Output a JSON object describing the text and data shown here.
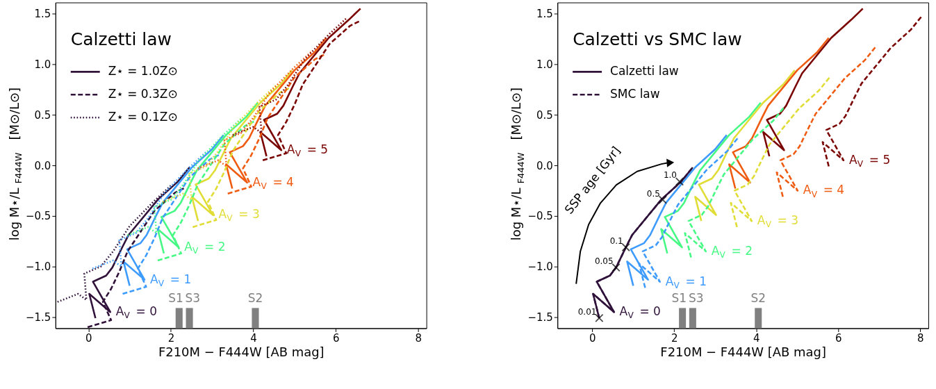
{
  "chart_data": [
    {
      "type": "line",
      "title": "Calzetti law",
      "xlabel": "F210M − F444W  [AB mag]",
      "ylabel": "log  M⋆/L$_{F444W}$  [M⊙/L⊙]",
      "xlim": [
        -0.8,
        8.2
      ],
      "ylim": [
        -1.61,
        1.61
      ],
      "xticks": [
        0,
        2,
        4,
        6,
        8
      ],
      "yticks": [
        {
          "value": -1.5,
          "label": "−1.5"
        },
        {
          "value": -1,
          "label": "−1.0"
        },
        {
          "value": -0.5,
          "label": "−0.5"
        },
        {
          "value": 0,
          "label": "0.0"
        },
        {
          "value": 0.5,
          "label": "0.5"
        },
        {
          "value": 1,
          "label": "1.0"
        },
        {
          "value": 1.5,
          "label": "1.5"
        }
      ],
      "grid": false,
      "legend": "top left",
      "series": [
        {
          "name": "Z⋆ = 1.0Z⊙",
          "color": "#30123b",
          "line_style": "solid",
          "x": [
            0.17,
            0.02,
            0.53,
            0.11,
            0.43,
            0.58,
            0.82,
            0.97,
            1.68,
            2.17,
            2.45
          ],
          "values": [
            -1.51,
            -1.27,
            -1.45,
            -1.15,
            -1.09,
            -1.01,
            -0.81,
            -0.69,
            -0.34,
            -0.16,
            -0.02
          ]
        },
        {
          "color": "#3e9bfe",
          "line_style": "solid",
          "x": [
            1.0,
            0.85,
            1.36,
            0.94,
            1.26,
            1.41,
            1.65,
            1.8,
            2.51,
            3.0,
            3.28
          ],
          "values": [
            -1.19,
            -0.95,
            -1.13,
            -0.83,
            -0.77,
            -0.69,
            -0.49,
            -0.37,
            -0.02,
            0.16,
            0.3
          ]
        },
        {
          "color": "#46f884",
          "line_style": "solid",
          "x": [
            1.83,
            1.68,
            2.19,
            1.77,
            2.09,
            2.24,
            2.48,
            2.63,
            3.34,
            3.83,
            4.11
          ],
          "values": [
            -0.87,
            -0.63,
            -0.81,
            -0.51,
            -0.45,
            -0.37,
            -0.17,
            -0.05,
            0.3,
            0.48,
            0.62
          ]
        },
        {
          "color": "#e1dd37",
          "line_style": "solid",
          "x": [
            2.66,
            2.51,
            3.02,
            2.6,
            2.92,
            3.07,
            3.31,
            3.46,
            4.17,
            4.66,
            4.94
          ],
          "values": [
            -0.55,
            -0.31,
            -0.49,
            -0.19,
            -0.13,
            -0.05,
            0.15,
            0.27,
            0.62,
            0.8,
            0.94
          ]
        },
        {
          "color": "#f05b12",
          "line_style": "solid",
          "x": [
            3.49,
            3.34,
            3.85,
            3.43,
            3.75,
            3.9,
            4.14,
            4.29,
            5.0,
            5.49,
            5.77
          ],
          "values": [
            -0.23,
            0.01,
            -0.17,
            0.13,
            0.19,
            0.27,
            0.47,
            0.59,
            0.94,
            1.12,
            1.26
          ]
        },
        {
          "color": "#7a0403",
          "line_style": "solid",
          "x": [
            4.32,
            4.17,
            4.68,
            4.26,
            4.58,
            4.73,
            4.97,
            5.12,
            5.83,
            6.32,
            6.6
          ],
          "values": [
            0.09,
            0.33,
            0.15,
            0.45,
            0.51,
            0.59,
            0.79,
            0.91,
            1.26,
            1.44,
            1.55
          ]
        },
        {
          "name": "Z⋆ = 0.3Z⊙",
          "color": "#30123b",
          "line_style": "dashed",
          "x": [
            -0.02,
            0.55,
            0.35,
            0.55,
            0.75,
            0.95,
            1.6,
            2.1,
            2.35
          ],
          "values": [
            -1.6,
            -1.53,
            -1.35,
            -1.22,
            -1.05,
            -0.85,
            -0.45,
            -0.27,
            -0.22
          ]
        },
        {
          "color": "#3e9bfe",
          "line_style": "dashed",
          "x": [
            0.83,
            1.4,
            1.2,
            1.4,
            1.6,
            1.8,
            2.45,
            2.95,
            3.2
          ],
          "values": [
            -1.27,
            -1.2,
            -1.02,
            -0.89,
            -0.72,
            -0.52,
            -0.12,
            0.06,
            0.11
          ]
        },
        {
          "color": "#46f884",
          "line_style": "dashed",
          "x": [
            1.68,
            2.25,
            2.05,
            2.25,
            2.45,
            2.65,
            3.3,
            3.8,
            4.05
          ],
          "values": [
            -0.94,
            -0.87,
            -0.69,
            -0.56,
            -0.39,
            -0.19,
            0.21,
            0.39,
            0.44
          ]
        },
        {
          "color": "#e1dd37",
          "line_style": "dashed",
          "x": [
            2.53,
            3.1,
            2.9,
            3.1,
            3.3,
            3.5,
            4.15,
            4.65,
            4.9
          ],
          "values": [
            -0.61,
            -0.54,
            -0.36,
            -0.23,
            -0.06,
            0.14,
            0.54,
            0.72,
            0.77
          ]
        },
        {
          "color": "#f05b12",
          "line_style": "dashed",
          "x": [
            3.38,
            3.95,
            3.75,
            3.95,
            4.15,
            4.35,
            5.0,
            5.5,
            5.75
          ],
          "values": [
            -0.28,
            -0.21,
            -0.03,
            0.1,
            0.27,
            0.47,
            0.87,
            1.05,
            1.1
          ]
        },
        {
          "color": "#7a0403",
          "line_style": "dashed",
          "x": [
            4.23,
            4.8,
            4.6,
            4.8,
            5.0,
            5.2,
            5.85,
            6.35,
            6.6
          ],
          "values": [
            0.05,
            0.12,
            0.3,
            0.43,
            0.6,
            0.8,
            1.2,
            1.38,
            1.43
          ]
        },
        {
          "name": "Z⋆ = 0.1Z⊙",
          "color": "#30123b",
          "line_style": "dotted",
          "x": [
            -0.75,
            -0.25,
            -0.05,
            -0.1,
            0.3,
            0.6,
            1.0,
            1.6,
            2.0
          ],
          "values": [
            -1.35,
            -1.27,
            -1.33,
            -1.07,
            -1.0,
            -0.85,
            -0.6,
            -0.35,
            -0.2
          ]
        },
        {
          "color": "#3e9bfe",
          "line_style": "dotted",
          "x": [
            0.1,
            0.6,
            0.8,
            0.75,
            1.15,
            1.45,
            1.85,
            2.45,
            2.85
          ],
          "values": [
            -1.02,
            -0.94,
            -1.0,
            -0.74,
            -0.67,
            -0.52,
            -0.27,
            -0.02,
            0.13
          ]
        },
        {
          "color": "#46f884",
          "line_style": "dotted",
          "x": [
            0.95,
            1.45,
            1.65,
            1.6,
            2.0,
            2.3,
            2.7,
            3.3,
            3.7
          ],
          "values": [
            -0.69,
            -0.61,
            -0.67,
            -0.41,
            -0.34,
            -0.19,
            0.06,
            0.31,
            0.46
          ]
        },
        {
          "color": "#e1dd37",
          "line_style": "dotted",
          "x": [
            1.8,
            2.3,
            2.5,
            2.45,
            2.85,
            3.15,
            3.55,
            4.15,
            4.55
          ],
          "values": [
            -0.36,
            -0.28,
            -0.34,
            -0.08,
            -0.01,
            0.14,
            0.39,
            0.64,
            0.79
          ]
        },
        {
          "color": "#f05b12",
          "line_style": "dotted",
          "x": [
            2.65,
            3.15,
            3.35,
            3.3,
            3.7,
            4.0,
            4.4,
            5.0,
            5.4
          ],
          "values": [
            -0.03,
            0.05,
            -0.01,
            0.25,
            0.32,
            0.47,
            0.72,
            0.97,
            1.12
          ]
        },
        {
          "color": "#7a0403",
          "line_style": "dotted",
          "x": [
            3.5,
            4.0,
            4.2,
            4.15,
            4.55,
            4.85,
            5.25,
            5.85,
            6.25
          ],
          "values": [
            0.3,
            0.38,
            0.32,
            0.58,
            0.65,
            0.8,
            1.05,
            1.3,
            1.45
          ]
        },
        {
          "type": "bar",
          "color": "#808080",
          "x": [
            2.2,
            2.45,
            4.05
          ],
          "base": [
            -1.61,
            -1.61,
            -1.61
          ],
          "values": [
            0.2,
            0.2,
            0.2
          ],
          "value_labels": [
            "S1",
            "S3",
            "S2"
          ]
        }
      ],
      "annotations": [
        {
          "text": "A$_{V}$ = 0",
          "x": 0.53,
          "y": -1.45
        },
        {
          "text": "A$_{V}$ = 1",
          "x": 1.36,
          "y": -1.13
        },
        {
          "text": "A$_{V}$ = 2",
          "x": 2.19,
          "y": -0.81
        },
        {
          "text": "A$_{V}$ = 3",
          "x": 3.02,
          "y": -0.49
        },
        {
          "text": "A$_{V}$ = 4",
          "x": 3.85,
          "y": -0.17
        },
        {
          "text": "A$_{V}$ = 5",
          "x": 4.68,
          "y": 0.15
        }
      ]
    },
    {
      "type": "line",
      "title": "Calzetti vs SMC law",
      "xlabel": "F210M − F444W  [AB mag]",
      "ylabel": "log  M⋆/L$_{F444W}$  [M⊙/L⊙]",
      "xlim": [
        -0.85,
        8.2
      ],
      "ylim": [
        -1.61,
        1.61
      ],
      "xticks": [
        0,
        2,
        4,
        6,
        8
      ],
      "yticks": [
        {
          "value": -1.5,
          "label": "−1.5"
        },
        {
          "value": -1,
          "label": "−1.0"
        },
        {
          "value": -0.5,
          "label": "−0.5"
        },
        {
          "value": 0,
          "label": "0.0"
        },
        {
          "value": 0.5,
          "label": "0.5"
        },
        {
          "value": 1,
          "label": "1.0"
        },
        {
          "value": 1.5,
          "label": "1.5"
        }
      ],
      "grid": false,
      "legend": "top left",
      "series": [
        {
          "name": "Calzetti law",
          "color": "#30123b",
          "line_style": "solid",
          "x": [
            0.17,
            0.02,
            0.53,
            0.11,
            0.43,
            0.58,
            0.82,
            0.97,
            1.68,
            2.17,
            2.45
          ],
          "values": [
            -1.51,
            -1.27,
            -1.45,
            -1.15,
            -1.09,
            -1.01,
            -0.81,
            -0.69,
            -0.34,
            -0.16,
            -0.02
          ]
        },
        {
          "color": "#3e9bfe",
          "line_style": "solid",
          "x": [
            1.0,
            0.85,
            1.36,
            0.94,
            1.26,
            1.41,
            1.65,
            1.8,
            2.51,
            3.0,
            3.28
          ],
          "values": [
            -1.19,
            -0.95,
            -1.13,
            -0.83,
            -0.77,
            -0.69,
            -0.49,
            -0.37,
            -0.02,
            0.16,
            0.3
          ]
        },
        {
          "color": "#46f884",
          "line_style": "solid",
          "x": [
            1.83,
            1.68,
            2.19,
            1.77,
            2.09,
            2.24,
            2.48,
            2.63,
            3.34,
            3.83,
            4.11
          ],
          "values": [
            -0.87,
            -0.63,
            -0.81,
            -0.51,
            -0.45,
            -0.37,
            -0.17,
            -0.05,
            0.3,
            0.48,
            0.62
          ]
        },
        {
          "color": "#e1dd37",
          "line_style": "solid",
          "x": [
            2.66,
            2.51,
            3.02,
            2.6,
            2.92,
            3.07,
            3.31,
            3.46,
            4.17,
            4.66,
            4.94
          ],
          "values": [
            -0.55,
            -0.31,
            -0.49,
            -0.19,
            -0.13,
            -0.05,
            0.15,
            0.27,
            0.62,
            0.8,
            0.94
          ]
        },
        {
          "color": "#f05b12",
          "line_style": "solid",
          "x": [
            3.49,
            3.34,
            3.85,
            3.43,
            3.75,
            3.9,
            4.14,
            4.29,
            5.0,
            5.49,
            5.77
          ],
          "values": [
            -0.23,
            0.01,
            -0.17,
            0.13,
            0.19,
            0.27,
            0.47,
            0.59,
            0.94,
            1.12,
            1.26
          ]
        },
        {
          "color": "#7a0403",
          "line_style": "solid",
          "x": [
            4.32,
            4.17,
            4.68,
            4.26,
            4.58,
            4.73,
            4.97,
            5.12,
            5.83,
            6.32,
            6.6
          ],
          "values": [
            0.09,
            0.33,
            0.15,
            0.45,
            0.51,
            0.59,
            0.79,
            0.91,
            1.26,
            1.44,
            1.55
          ]
        },
        {
          "name": "SMC law",
          "color": "#30123b",
          "line_style": "dashed",
          "x": [
            0.17,
            0.02,
            0.53,
            0.11,
            0.43,
            0.58,
            0.82,
            0.97,
            1.68,
            2.17,
            2.45
          ],
          "values": [
            -1.51,
            -1.27,
            -1.45,
            -1.15,
            -1.09,
            -1.01,
            -0.81,
            -0.69,
            -0.34,
            -0.16,
            -0.02
          ]
        },
        {
          "color": "#3e9bfe",
          "line_style": "dashed",
          "x": [
            1.29,
            1.14,
            1.65,
            1.23,
            1.55,
            1.7,
            1.94,
            2.09,
            2.8,
            3.29,
            3.57
          ],
          "values": [
            -1.21,
            -0.97,
            -1.15,
            -0.85,
            -0.79,
            -0.71,
            -0.51,
            -0.39,
            -0.04,
            0.14,
            0.28
          ]
        },
        {
          "color": "#46f884",
          "line_style": "dashed",
          "x": [
            2.41,
            2.26,
            2.77,
            2.35,
            2.67,
            2.82,
            3.06,
            3.21,
            3.92,
            4.41,
            4.69
          ],
          "values": [
            -0.91,
            -0.67,
            -0.85,
            -0.55,
            -0.49,
            -0.41,
            -0.21,
            -0.09,
            0.26,
            0.44,
            0.58
          ]
        },
        {
          "color": "#e1dd37",
          "line_style": "dashed",
          "x": [
            3.53,
            3.38,
            3.89,
            3.47,
            3.79,
            3.94,
            4.18,
            4.33,
            5.04,
            5.53,
            5.81
          ],
          "values": [
            -0.61,
            -0.37,
            -0.55,
            -0.25,
            -0.19,
            -0.11,
            0.09,
            0.21,
            0.56,
            0.74,
            0.88
          ]
        },
        {
          "color": "#f05b12",
          "line_style": "dashed",
          "x": [
            4.65,
            4.5,
            5.01,
            4.59,
            4.91,
            5.06,
            5.3,
            5.45,
            6.16,
            6.65,
            6.93
          ],
          "values": [
            -0.31,
            -0.07,
            -0.25,
            0.05,
            0.11,
            0.19,
            0.39,
            0.51,
            0.86,
            1.04,
            1.18
          ]
        },
        {
          "color": "#7a0403",
          "line_style": "dashed",
          "x": [
            5.77,
            5.62,
            6.13,
            5.71,
            6.03,
            6.18,
            6.42,
            6.57,
            7.28,
            7.77,
            8.05
          ],
          "values": [
            -0.01,
            0.23,
            0.05,
            0.35,
            0.41,
            0.49,
            0.69,
            0.81,
            1.16,
            1.34,
            1.48
          ]
        },
        {
          "type": "scatter",
          "color": "#000000",
          "marker": "cross",
          "x": [
            0.17,
            0.58,
            0.82,
            1.72,
            2.13
          ],
          "values": [
            -1.51,
            -1.01,
            -0.81,
            -0.34,
            -0.16
          ]
        },
        {
          "type": "bar",
          "color": "#808080",
          "x": [
            2.2,
            2.45,
            4.05
          ],
          "base": [
            -1.61,
            -1.61,
            -1.61
          ],
          "values": [
            0.2,
            0.2,
            0.2
          ],
          "value_labels": [
            "S1",
            "S3",
            "S2"
          ]
        }
      ],
      "annotations": [
        {
          "text": "A$_{V}$ = 0",
          "x": 0.53,
          "y": -1.45
        },
        {
          "text": "A$_{V}$ = 1",
          "x": 1.65,
          "y": -1.15
        },
        {
          "text": "A$_{V}$ = 2",
          "x": 2.77,
          "y": -0.85
        },
        {
          "text": "A$_{V}$ = 3",
          "x": 3.89,
          "y": -0.55
        },
        {
          "text": "A$_{V}$ = 4",
          "x": 5.01,
          "y": -0.25
        },
        {
          "text": "A$_{V}$ = 5",
          "x": 6.13,
          "y": 0.05
        },
        {
          "text": "0.01",
          "x": 0.17,
          "y": -1.51
        },
        {
          "text": "0.05",
          "x": 0.58,
          "y": -1.01
        },
        {
          "text": "0.1",
          "x": 0.82,
          "y": -0.81
        },
        {
          "text": "0.5",
          "x": 1.72,
          "y": -0.34
        },
        {
          "text": "1.0",
          "x": 2.13,
          "y": -0.16
        },
        "SSP age [Gyr]"
      ]
    }
  ]
}
